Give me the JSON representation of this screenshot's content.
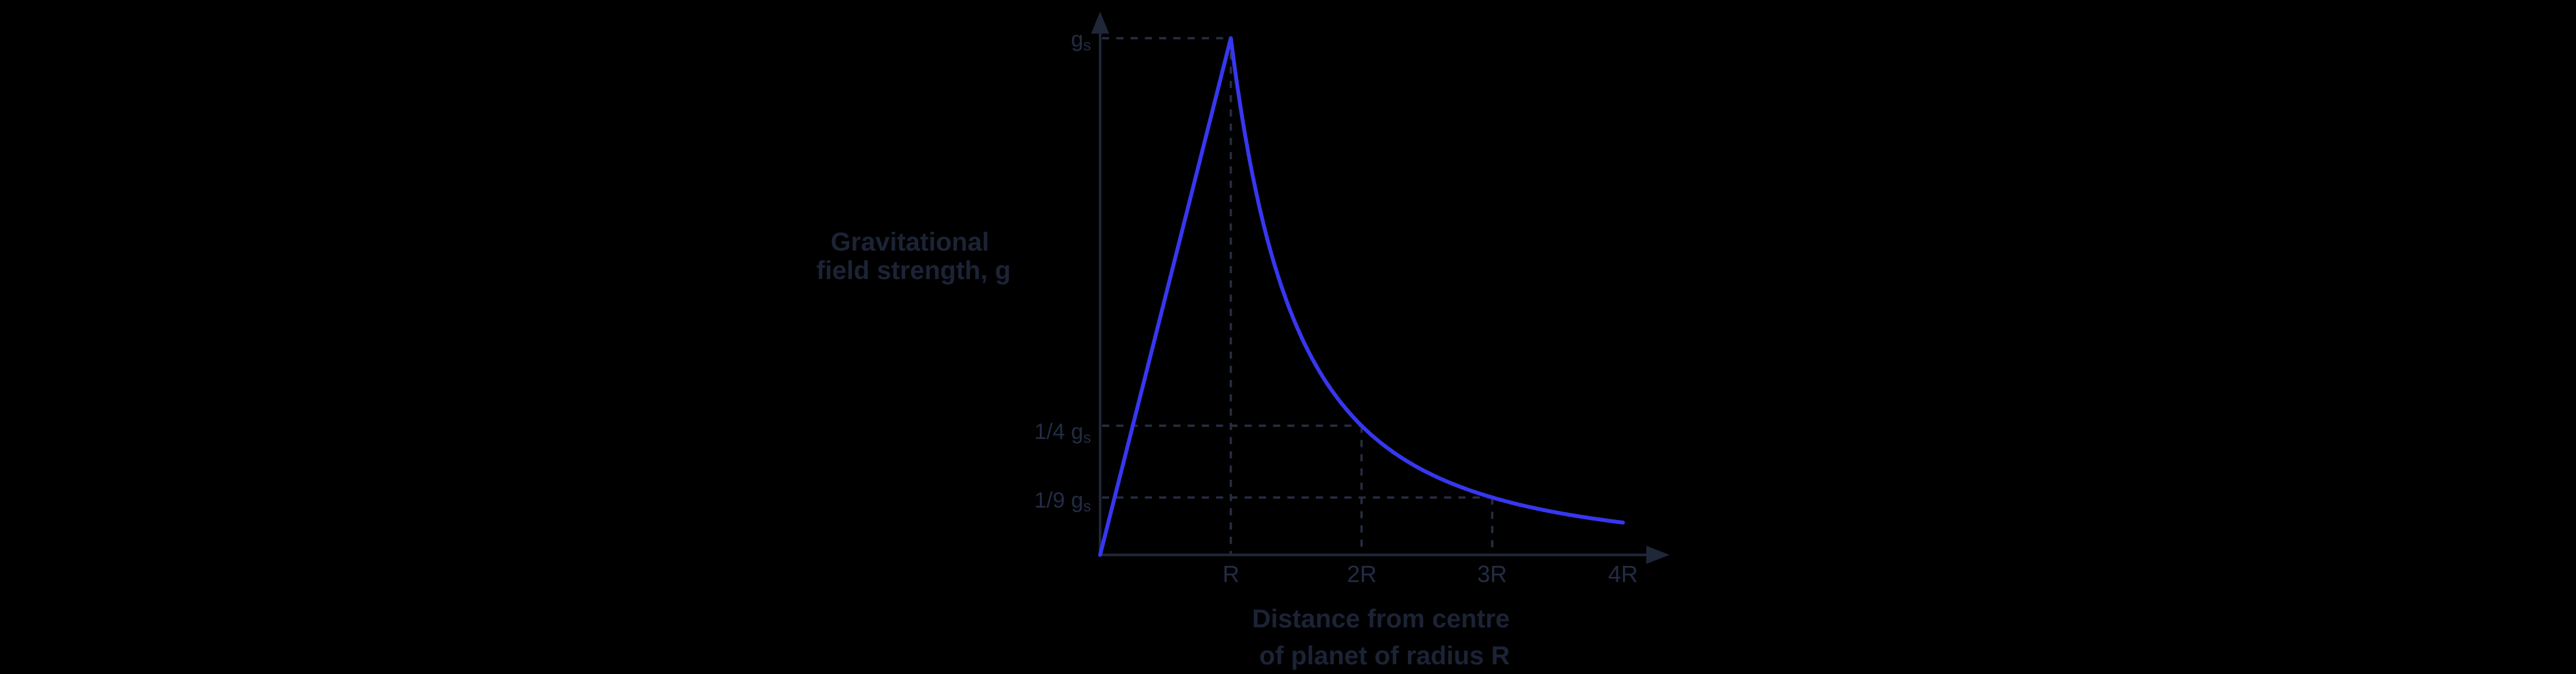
{
  "page": {
    "background": "#000000",
    "description_visible_text_only": "Physics graph of gravitational field strength against distance from planet centre"
  },
  "chart_data": {
    "type": "line",
    "title": "",
    "ylabel_lines": [
      "Gravitational",
      "field strength, g"
    ],
    "xlabel_lines": [
      "Distance from centre",
      "of planet of radius R"
    ],
    "grid": false,
    "legend": false,
    "xlim": [
      0,
      4.35
    ],
    "ylim": [
      0,
      1.05
    ],
    "x_ticks": [
      {
        "label": "R",
        "value": 1
      },
      {
        "label": "2R",
        "value": 2
      },
      {
        "label": "3R",
        "value": 3
      },
      {
        "label": "4R",
        "value": 4
      }
    ],
    "y_ticks": [
      {
        "label": "g",
        "sub": "s",
        "value": 1
      },
      {
        "label": "1/4 g",
        "sub": "s",
        "value": 0.25
      },
      {
        "label": "1/9 g",
        "sub": "s",
        "value": 0.1111
      }
    ],
    "guides": [
      {
        "x": 1,
        "y": 1
      },
      {
        "x": 2,
        "y": 0.25
      },
      {
        "x": 3,
        "y": 0.1111
      }
    ],
    "series": [
      {
        "name": "gravitational field strength g(r)",
        "model_inside_planet": "g rises linearly from 0 at centre to gs at surface r = R",
        "model_outside_planet": "g = gs * R^2 / r^2 (inverse square) for r >= R",
        "x": [
          0,
          0.25,
          0.5,
          0.75,
          1,
          1.5,
          2,
          2.5,
          3,
          3.5,
          4
        ],
        "y": [
          0,
          0.25,
          0.5,
          0.75,
          1,
          0.4444,
          0.25,
          0.16,
          0.1111,
          0.0816,
          0.0625
        ]
      }
    ],
    "colors": {
      "background": "#000000",
      "curve": "#3737f0",
      "axis": "#1f2739",
      "dash": "#262e42",
      "title": "#1c2336",
      "tick": "#232c44"
    }
  }
}
